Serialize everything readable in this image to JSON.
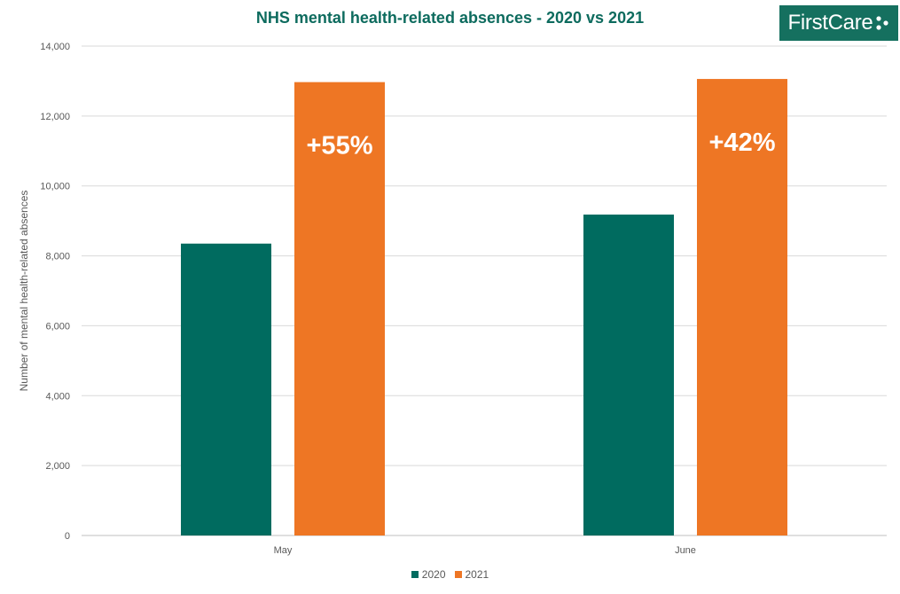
{
  "brand": {
    "logo_text": "FirstCare",
    "logo_bg": "#15705f"
  },
  "chart_data": {
    "type": "bar",
    "title": "NHS mental health-related absences - 2020 vs 2021",
    "xlabel": "",
    "ylabel": "Number of mental health-related absences",
    "categories": [
      "May",
      "June"
    ],
    "series": [
      {
        "name": "2020",
        "color": "#006b5f",
        "values": [
          8350,
          9180
        ]
      },
      {
        "name": "2021",
        "color": "#ee7624",
        "values": [
          12970,
          13060
        ],
        "bar_labels": [
          "+55%",
          "+42%"
        ]
      }
    ],
    "ylim": [
      0,
      14000
    ],
    "yticks": [
      0,
      2000,
      4000,
      6000,
      8000,
      10000,
      12000,
      14000
    ],
    "ytick_labels": [
      "0",
      "2,000",
      "4,000",
      "6,000",
      "8,000",
      "10,000",
      "12,000",
      "14,000"
    ],
    "grid": true,
    "legend_position": "bottom"
  }
}
